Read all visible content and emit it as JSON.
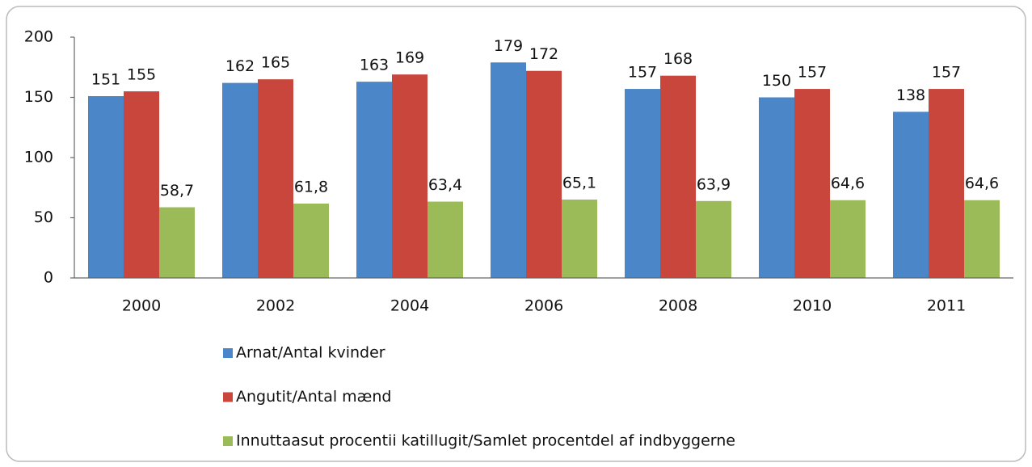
{
  "chart_data": {
    "type": "bar",
    "categories": [
      "2000",
      "2002",
      "2004",
      "2006",
      "2008",
      "2010",
      "2011"
    ],
    "series": [
      {
        "name": "Arnat/Antal kvinder",
        "color": "#4a86c8",
        "values": [
          151,
          162,
          163,
          179,
          157,
          150,
          138
        ]
      },
      {
        "name": "Angutit/Antal mænd",
        "color": "#c9463d",
        "values": [
          155,
          165,
          169,
          172,
          168,
          157,
          157
        ]
      },
      {
        "name": "Innuttaasut procentii katillugit/Samlet procentdel af indbyggerne",
        "color": "#9bbb59",
        "values": [
          58.7,
          61.8,
          63.4,
          65.1,
          63.9,
          64.6,
          64.6
        ],
        "value_labels": [
          "58,7",
          "61,8",
          "63,4",
          "65,1",
          "63,9",
          "64,6",
          "64,6"
        ]
      }
    ],
    "ylim": [
      0,
      200
    ],
    "yticks": [
      0,
      50,
      100,
      150,
      200
    ],
    "grid": false,
    "legend": "bottom"
  }
}
